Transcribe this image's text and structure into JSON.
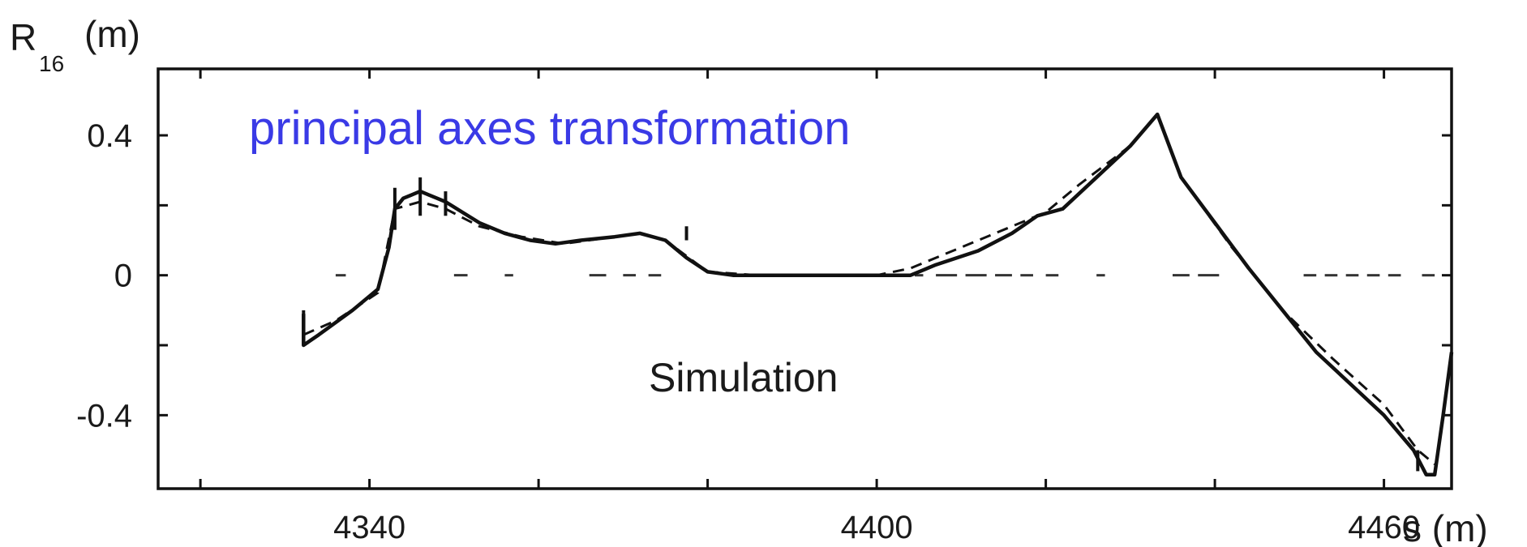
{
  "chart_data": {
    "type": "line",
    "ylabel": "R",
    "ylabel_sub": "16",
    "ylabel_unit": "(m)",
    "xlabel": "s (m)",
    "xlim": [
      4315,
      4468
    ],
    "ylim": [
      -0.61,
      0.59
    ],
    "x_ticks": [
      4340,
      4400,
      4460
    ],
    "x_tick_labels": [
      "4340",
      "4400",
      "4460"
    ],
    "x_minor_ticks": [
      4320,
      4360,
      4380,
      4420,
      4440
    ],
    "y_ticks": [
      0.4,
      0,
      -0.4
    ],
    "y_tick_labels": [
      "0.4",
      "0",
      "-0.4"
    ],
    "y_minor_ticks": [
      0.2,
      -0.2
    ],
    "grid": false,
    "annotations": [
      {
        "text": "principal axes transformation",
        "color": "#3a3ae6"
      },
      {
        "text": "Simulation",
        "color": "#1a1a1a"
      }
    ],
    "series": [
      {
        "style": "solid",
        "color": "#111111",
        "x": [
          4332.2,
          4332.2,
          4334,
          4338,
          4341,
          4342.3,
          4343,
          4344,
          4346,
          4347,
          4348,
          4349,
          4351,
          4353,
          4356,
          4359,
          4362,
          4365,
          4369,
          4372,
          4375,
          4377.5,
          4380,
          4383,
          4386,
          4388,
          4392,
          4396,
          4400,
          4404,
          4407,
          4412,
          4416,
          4419,
          4422,
          4426,
          4430,
          4433.2,
          4436,
          4440,
          4444,
          4448,
          4452,
          4456,
          4460,
          4463.5,
          4465,
          4466,
          4467,
          4468
        ],
        "y": [
          -0.11,
          -0.2,
          -0.17,
          -0.1,
          -0.04,
          0.08,
          0.19,
          0.22,
          0.24,
          0.23,
          0.22,
          0.21,
          0.18,
          0.15,
          0.12,
          0.1,
          0.09,
          0.1,
          0.11,
          0.12,
          0.1,
          0.05,
          0.01,
          0.0,
          0.0,
          0.0,
          0.0,
          0.0,
          0.0,
          0.0,
          0.03,
          0.07,
          0.12,
          0.17,
          0.19,
          0.28,
          0.37,
          0.46,
          0.28,
          0.15,
          0.02,
          -0.1,
          -0.22,
          -0.31,
          -0.4,
          -0.5,
          -0.57,
          -0.57,
          -0.4,
          -0.22
        ]
      },
      {
        "style": "dashed",
        "color": "#111111",
        "x": [
          4332.2,
          4336,
          4341,
          4343,
          4346,
          4349,
          4353,
          4358,
          4363,
          4369,
          4372,
          4375,
          4380,
          4386,
          4400,
          4404,
          4410,
          4416,
          4420,
          4424,
          4430,
          4433.2,
          4436,
          4442,
          4448,
          4454,
          4460,
          4464,
          4466
        ],
        "y": [
          -0.17,
          -0.13,
          -0.05,
          0.19,
          0.21,
          0.19,
          0.14,
          0.11,
          0.09,
          0.11,
          0.12,
          0.1,
          0.01,
          0.0,
          0.0,
          0.02,
          0.08,
          0.14,
          0.18,
          0.26,
          0.37,
          0.46,
          0.28,
          0.08,
          -0.1,
          -0.24,
          -0.37,
          -0.5,
          -0.54
        ]
      }
    ],
    "spikes": [
      {
        "x": 4332.2,
        "y1": -0.1,
        "y2": -0.2
      },
      {
        "x": 4343.0,
        "y1": 0.13,
        "y2": 0.25
      },
      {
        "x": 4346.0,
        "y1": 0.17,
        "y2": 0.28
      },
      {
        "x": 4349.0,
        "y1": 0.17,
        "y2": 0.24
      },
      {
        "x": 4377.5,
        "y1": 0.1,
        "y2": 0.14
      },
      {
        "x": 4464.0,
        "y1": -0.5,
        "y2": -0.56
      }
    ],
    "baseline_dashes": [
      [
        4336,
        4337.2
      ],
      [
        4350,
        4351.6
      ],
      [
        4356,
        4357
      ],
      [
        4366,
        4368
      ],
      [
        4370,
        4371.5
      ],
      [
        4373,
        4374.5
      ],
      [
        4401,
        4402
      ],
      [
        4404.5,
        4405.5
      ],
      [
        4407,
        4409.5
      ],
      [
        4410.5,
        4413
      ],
      [
        4414,
        4416
      ],
      [
        4417,
        4418.5
      ],
      [
        4420,
        4421.5
      ],
      [
        4426,
        4427
      ],
      [
        4435,
        4437
      ],
      [
        4438,
        4440.5
      ],
      [
        4450.5,
        4452
      ],
      [
        4453,
        4454.5
      ],
      [
        4455.5,
        4457
      ],
      [
        4458,
        4459.5
      ],
      [
        4460.5,
        4462
      ],
      [
        4464.5,
        4466
      ]
    ]
  }
}
